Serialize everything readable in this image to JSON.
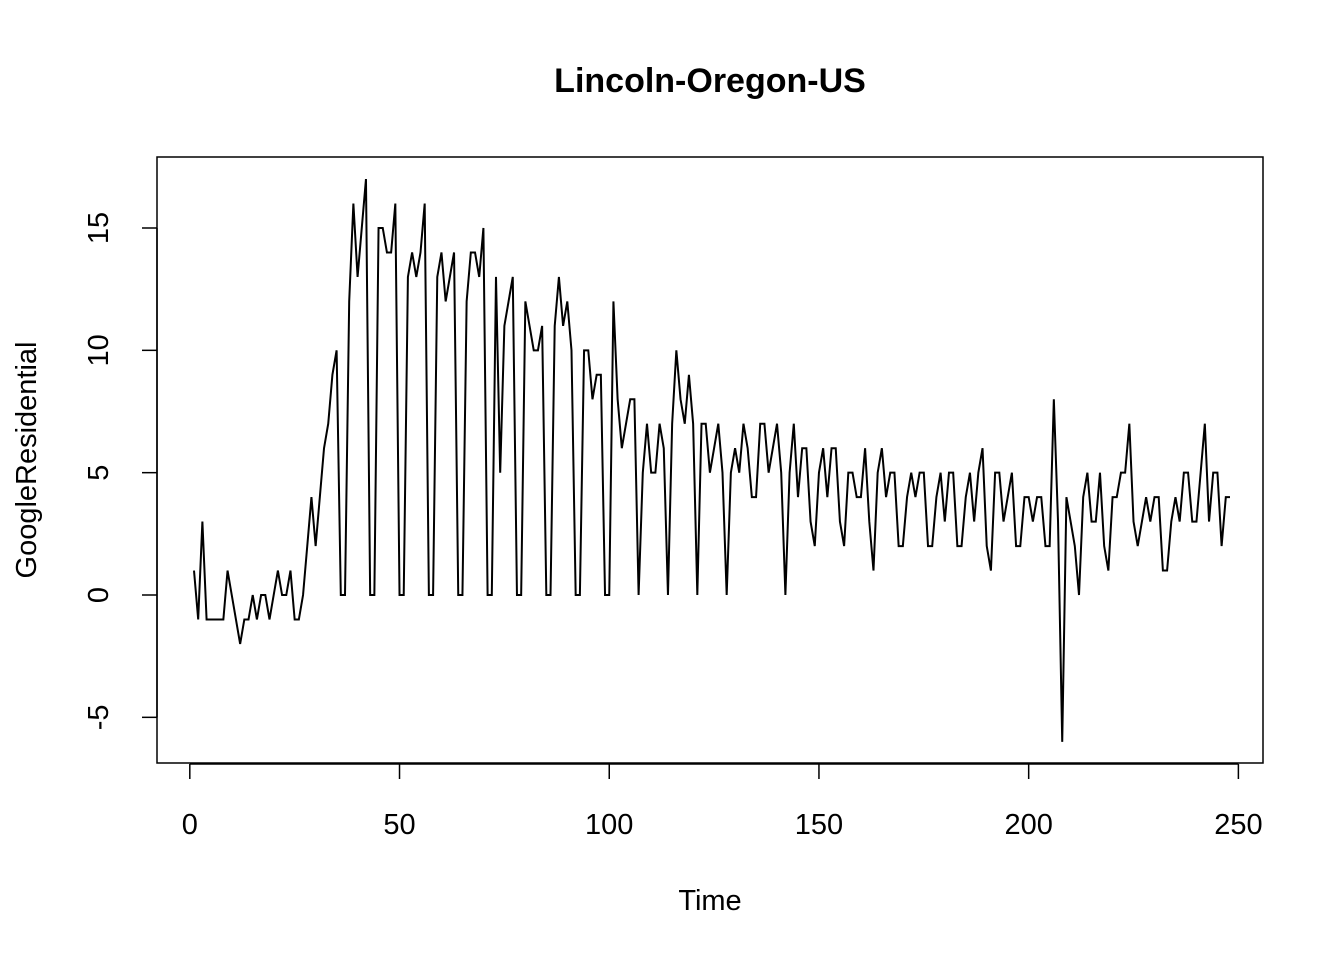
{
  "chart_data": {
    "type": "line",
    "title": "Lincoln-Oregon-US",
    "xlabel": "Time",
    "ylabel": "GoogleResidential",
    "xlim": [
      1,
      248
    ],
    "ylim": [
      -6,
      17
    ],
    "x_ticks": [
      0,
      50,
      100,
      150,
      200,
      250
    ],
    "y_ticks": [
      -5,
      0,
      5,
      10,
      15
    ],
    "x_tick_labels": [
      "0",
      "50",
      "100",
      "150",
      "200",
      "250"
    ],
    "y_tick_labels": [
      "-5",
      "0",
      "5",
      "10",
      "15"
    ],
    "grid": false,
    "line_color": "#000000",
    "series": [
      {
        "x_start": 1,
        "values": [
          1,
          -1,
          3,
          -1,
          -1,
          -1,
          -1,
          -1,
          1,
          0,
          -1,
          -2,
          -1,
          -1,
          0,
          -1,
          0,
          0,
          -1,
          0,
          1,
          0,
          0,
          1,
          -1,
          -1,
          0,
          2,
          4,
          2,
          4,
          6,
          7,
          9,
          10,
          0,
          0,
          12,
          16,
          13,
          15,
          17,
          0,
          0,
          15,
          15,
          14,
          14,
          16,
          0,
          0,
          13,
          14,
          13,
          14,
          16,
          0,
          0,
          13,
          14,
          12,
          13,
          14,
          0,
          0,
          12,
          14,
          14,
          13,
          15,
          0,
          0,
          13,
          5,
          11,
          12,
          13,
          0,
          0,
          12,
          11,
          10,
          10,
          11,
          0,
          0,
          11,
          13,
          11,
          12,
          10,
          0,
          0,
          10,
          10,
          8,
          9,
          9,
          0,
          0,
          12,
          8,
          6,
          7,
          8,
          8,
          0,
          5,
          7,
          5,
          5,
          7,
          6,
          0,
          7,
          10,
          8,
          7,
          9,
          7,
          0,
          7,
          7,
          5,
          6,
          7,
          5,
          0,
          5,
          6,
          5,
          7,
          6,
          4,
          4,
          7,
          7,
          5,
          6,
          7,
          5,
          0,
          5,
          7,
          4,
          6,
          6,
          3,
          2,
          5,
          6,
          4,
          6,
          6,
          3,
          2,
          5,
          5,
          4,
          4,
          6,
          3,
          1,
          5,
          6,
          4,
          5,
          5,
          2,
          2,
          4,
          5,
          4,
          5,
          5,
          2,
          2,
          4,
          5,
          3,
          5,
          5,
          2,
          2,
          4,
          5,
          3,
          5,
          6,
          2,
          1,
          5,
          5,
          3,
          4,
          5,
          2,
          2,
          4,
          4,
          3,
          4,
          4,
          2,
          2,
          8,
          3,
          -6,
          4,
          3,
          2,
          0,
          4,
          5,
          3,
          3,
          5,
          2,
          1,
          4,
          4,
          5,
          5,
          7,
          3,
          2,
          3,
          4,
          3,
          4,
          4,
          1,
          1,
          3,
          4,
          3,
          5,
          5,
          3,
          3,
          5,
          7,
          3,
          5,
          5,
          2,
          4,
          4
        ]
      }
    ]
  }
}
